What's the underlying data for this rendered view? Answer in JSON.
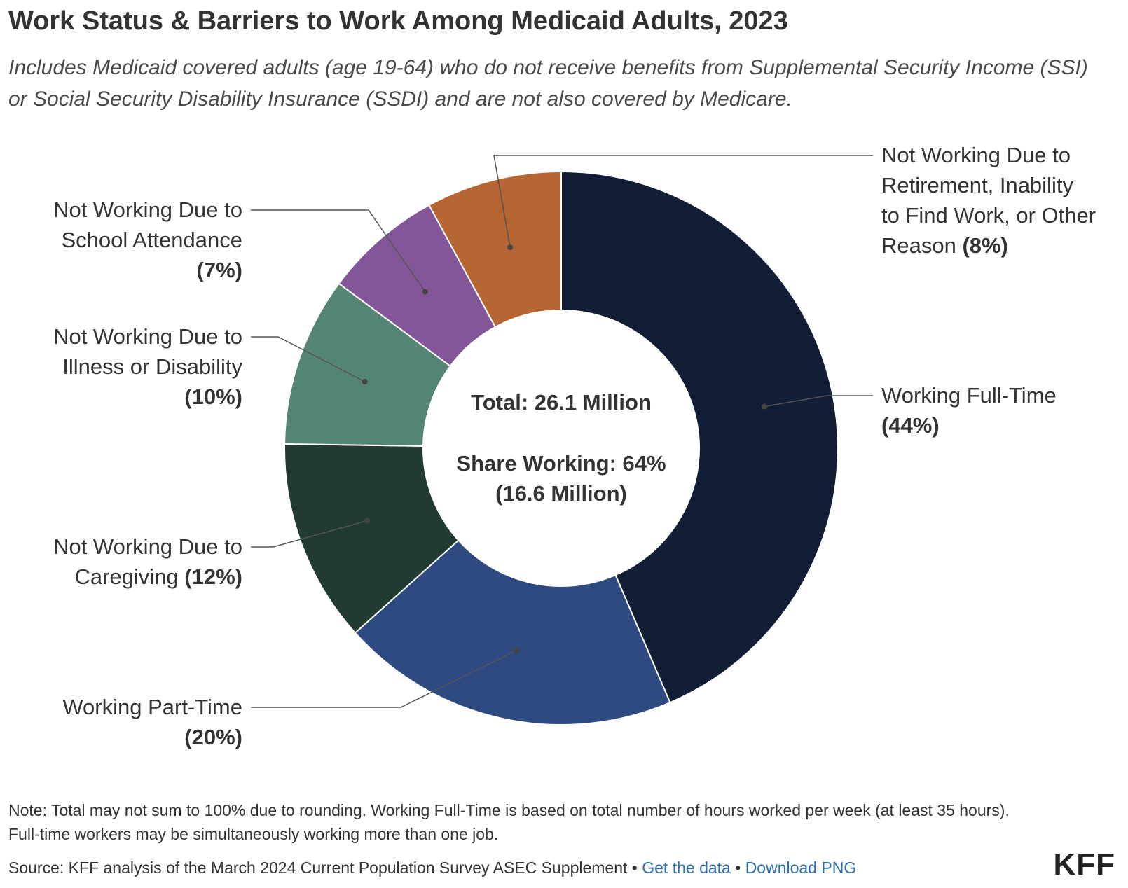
{
  "title": "Work Status & Barriers to Work Among Medicaid Adults, 2023",
  "subtitle": "Includes Medicaid covered adults (age 19-64) who do not receive benefits from Supplemental Security Income (SSI) or Social Security Disability Insurance (SSDI) and are not also covered by Medicare.",
  "chart_data": {
    "type": "pie",
    "donut": true,
    "center_text": {
      "total": "Total: 26.1 Million",
      "share_line1": "Share Working: 64%",
      "share_line2": "(16.6 Million)"
    },
    "slices": [
      {
        "name": "Working Full-Time",
        "value": 44,
        "label_lines": [
          "Working Full-Time"
        ],
        "pct_label": "(44%)",
        "color": "#111e36"
      },
      {
        "name": "Working Part-Time",
        "value": 20,
        "label_lines": [
          "Working Part-Time"
        ],
        "pct_label": "(20%)",
        "color": "#2e4a80"
      },
      {
        "name": "Not Working Due to Caregiving",
        "value": 12,
        "label_lines": [
          "Not Working Due to",
          "Caregiving"
        ],
        "pct_label": "(12%)",
        "color": "#213b32"
      },
      {
        "name": "Not Working Due to Illness or Disability",
        "value": 10,
        "label_lines": [
          "Not Working Due to",
          "Illness or Disability"
        ],
        "pct_label": "(10%)",
        "color": "#548474"
      },
      {
        "name": "Not Working Due to School Attendance",
        "value": 7,
        "label_lines": [
          "Not Working Due to",
          "School Attendance"
        ],
        "pct_label": "(7%)",
        "color": "#83569a"
      },
      {
        "name": "Not Working Due to Retirement, Inability to Find Work, or Other Reason",
        "value": 8,
        "label_lines": [
          "Not Working Due to",
          "Retirement, Inability",
          "to Find Work, or Other",
          "Reason"
        ],
        "pct_label": "(8%)",
        "color": "#b56632"
      }
    ]
  },
  "footer": {
    "note": "Note: Total may not sum to 100% due to rounding. Working Full-Time is based on total number of hours worked per week (at least 35 hours). Full-time workers may be simultaneously working more than one job.",
    "source": "Source: KFF analysis of the March 2024 Current Population Survey ASEC Supplement",
    "separator": "•",
    "get_data": "Get the data",
    "download": "Download PNG",
    "logo": "KFF"
  }
}
